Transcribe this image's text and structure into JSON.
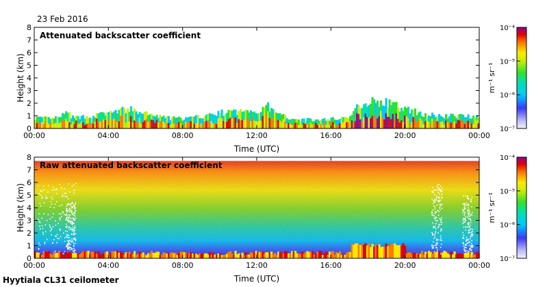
{
  "date_label": "23 Feb 2016",
  "footer_label": "Hyytiala CL31 ceilometer",
  "chart_data": [
    {
      "type": "heatmap",
      "title": "Attenuated backscatter coefficient",
      "xlabel": "Time (UTC)",
      "ylabel": "Height (km)",
      "xlim": [
        0,
        24
      ],
      "ylim": [
        0,
        8
      ],
      "x_ticks": [
        "00:00",
        "04:00",
        "08:00",
        "12:00",
        "16:00",
        "20:00",
        "00:00"
      ],
      "y_ticks": [
        "0",
        "1",
        "2",
        "3",
        "4",
        "5",
        "6",
        "7",
        "8"
      ],
      "colorbar": {
        "scale": "log",
        "range": [
          1e-07,
          0.0001
        ],
        "unit": "m⁻¹ sr⁻¹",
        "ticks": [
          "10⁻⁷",
          "10⁻⁶",
          "10⁻⁵",
          "10⁻⁴"
        ]
      },
      "profile": {
        "note": "approximate top height (km) of the signal layer vs time (h)",
        "time_h": [
          0,
          1,
          1.8,
          2,
          3,
          4,
          5,
          6,
          7,
          8,
          9,
          10,
          11,
          12,
          12.5,
          13,
          14,
          15,
          16,
          17,
          17.5,
          18,
          19,
          20,
          21,
          22,
          23,
          24
        ],
        "top_km": [
          0.9,
          0.8,
          1.3,
          0.9,
          1.0,
          1.3,
          1.6,
          1.2,
          0.9,
          0.8,
          1.0,
          1.3,
          1.4,
          1.5,
          1.9,
          1.2,
          0.8,
          0.7,
          0.8,
          1.0,
          2.0,
          2.3,
          2.1,
          1.6,
          1.2,
          1.0,
          1.1,
          1.0
        ]
      }
    },
    {
      "type": "heatmap",
      "title": "Raw attenuated backscatter coefficient",
      "xlabel": "Time (UTC)",
      "ylabel": "Height (km)",
      "xlim": [
        0,
        24
      ],
      "ylim": [
        0,
        8
      ],
      "x_ticks": [
        "00:00",
        "04:00",
        "08:00",
        "12:00",
        "16:00",
        "20:00",
        "00:00"
      ],
      "y_ticks": [
        "0",
        "1",
        "2",
        "3",
        "4",
        "5",
        "6",
        "7",
        "8"
      ],
      "colorbar": {
        "scale": "log",
        "range": [
          1e-07,
          0.0001
        ],
        "unit": "m⁻¹ sr⁻¹",
        "ticks": [
          "10⁻⁷",
          "10⁻⁶",
          "10⁻⁵",
          "10⁻⁴"
        ]
      },
      "noise_floor_top_km": 7.7
    }
  ]
}
